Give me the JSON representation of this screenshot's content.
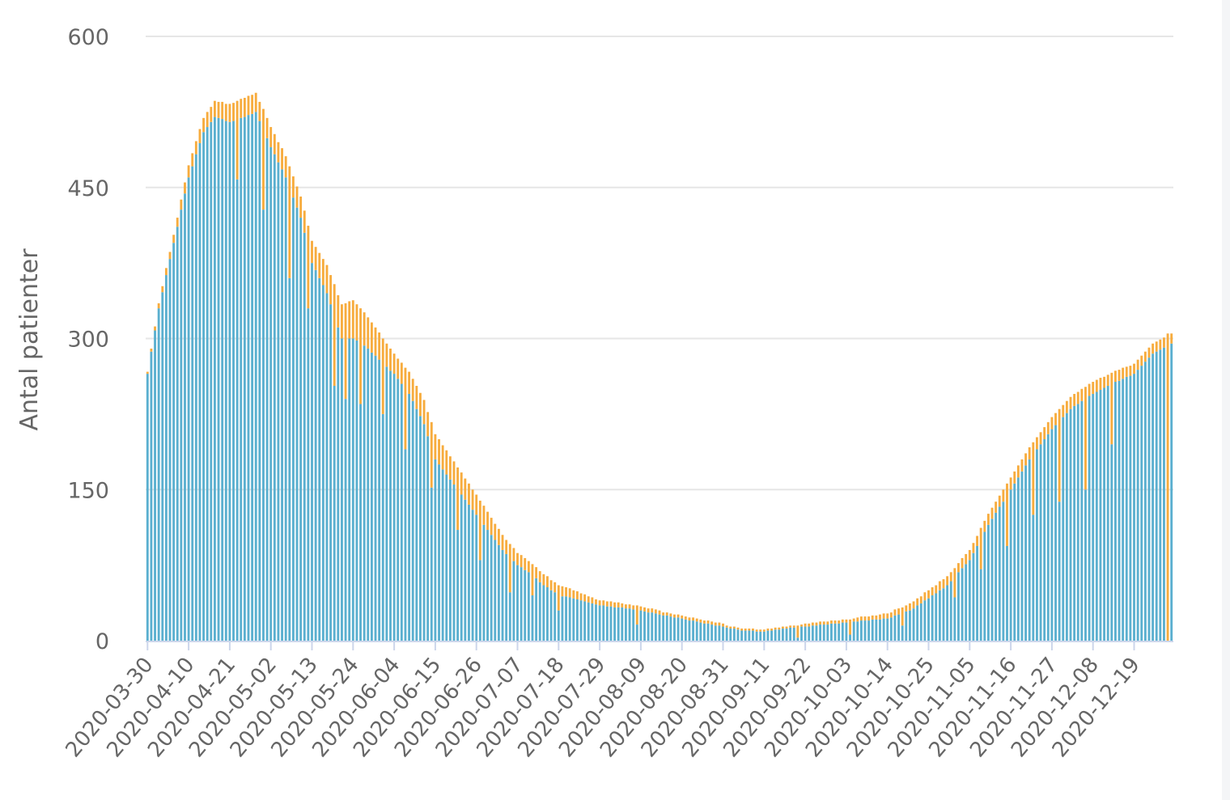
{
  "chart_data": {
    "type": "bar",
    "stacked": true,
    "ylabel": "Antal patienter",
    "ylim": [
      0,
      600
    ],
    "yticks": [
      0,
      150,
      300,
      450,
      600
    ],
    "grid": true,
    "legend": "none",
    "x_start": "2020-03-30",
    "x_end": "2020-12-29",
    "xtick_labels": [
      "2020-03-30",
      "2020-04-10",
      "2020-04-21",
      "2020-05-02",
      "2020-05-13",
      "2020-05-24",
      "2020-06-04",
      "2020-06-15",
      "2020-06-26",
      "2020-07-07",
      "2020-07-18",
      "2020-07-29",
      "2020-08-09",
      "2020-08-20",
      "2020-08-31",
      "2020-09-11",
      "2020-09-22",
      "2020-10-03",
      "2020-10-14",
      "2020-10-25",
      "2020-11-05",
      "2020-11-16",
      "2020-11-27",
      "2020-12-08",
      "2020-12-19"
    ],
    "series": [
      {
        "color": "#5aafcf",
        "knots": [
          [
            "2020-03-30",
            265
          ],
          [
            "2020-04-02",
            330
          ],
          [
            "2020-04-06",
            395
          ],
          [
            "2020-04-10",
            460
          ],
          [
            "2020-04-14",
            505
          ],
          [
            "2020-04-17",
            520
          ],
          [
            "2020-04-21",
            515
          ],
          [
            "2020-04-25",
            520
          ],
          [
            "2020-04-28",
            525
          ],
          [
            "2020-05-02",
            490
          ],
          [
            "2020-05-06",
            460
          ],
          [
            "2020-05-10",
            420
          ],
          [
            "2020-05-13",
            375
          ],
          [
            "2020-05-17",
            345
          ],
          [
            "2020-05-21",
            300
          ],
          [
            "2020-05-24",
            300
          ],
          [
            "2020-05-28",
            290
          ],
          [
            "2020-06-01",
            275
          ],
          [
            "2020-06-04",
            265
          ],
          [
            "2020-06-08",
            245
          ],
          [
            "2020-06-12",
            215
          ],
          [
            "2020-06-15",
            180
          ],
          [
            "2020-06-19",
            160
          ],
          [
            "2020-06-23",
            140
          ],
          [
            "2020-06-26",
            125
          ],
          [
            "2020-06-30",
            105
          ],
          [
            "2020-07-03",
            90
          ],
          [
            "2020-07-07",
            75
          ],
          [
            "2020-07-11",
            65
          ],
          [
            "2020-07-14",
            55
          ],
          [
            "2020-07-18",
            45
          ],
          [
            "2020-07-22",
            42
          ],
          [
            "2020-07-29",
            35
          ],
          [
            "2020-08-03",
            33
          ],
          [
            "2020-08-09",
            30
          ],
          [
            "2020-08-14",
            26
          ],
          [
            "2020-08-20",
            22
          ],
          [
            "2020-08-25",
            18
          ],
          [
            "2020-08-31",
            14
          ],
          [
            "2020-09-05",
            10
          ],
          [
            "2020-09-11",
            9
          ],
          [
            "2020-09-16",
            12
          ],
          [
            "2020-09-22",
            14
          ],
          [
            "2020-09-27",
            16
          ],
          [
            "2020-10-03",
            18
          ],
          [
            "2020-10-08",
            20
          ],
          [
            "2020-10-14",
            22
          ],
          [
            "2020-10-20",
            30
          ],
          [
            "2020-10-25",
            42
          ],
          [
            "2020-10-30",
            55
          ],
          [
            "2020-11-05",
            80
          ],
          [
            "2020-11-10",
            115
          ],
          [
            "2020-11-16",
            150
          ],
          [
            "2020-11-21",
            180
          ],
          [
            "2020-11-27",
            210
          ],
          [
            "2020-12-02",
            230
          ],
          [
            "2020-12-08",
            245
          ],
          [
            "2020-12-13",
            255
          ],
          [
            "2020-12-19",
            265
          ],
          [
            "2020-12-24",
            285
          ],
          [
            "2020-12-29",
            295
          ]
        ],
        "dips": [
          [
            "2020-04-23",
            60
          ],
          [
            "2020-04-30",
            80
          ],
          [
            "2020-05-07",
            90
          ],
          [
            "2020-05-12",
            60
          ],
          [
            "2020-05-19",
            70
          ],
          [
            "2020-05-22",
            60
          ],
          [
            "2020-05-26",
            60
          ],
          [
            "2020-06-01",
            50
          ],
          [
            "2020-06-07",
            60
          ],
          [
            "2020-06-14",
            40
          ],
          [
            "2020-06-21",
            40
          ],
          [
            "2020-06-27",
            40
          ],
          [
            "2020-07-05",
            35
          ],
          [
            "2020-07-11",
            20
          ],
          [
            "2020-07-18",
            15
          ],
          [
            "2020-08-08",
            15
          ],
          [
            "2020-09-20",
            10
          ],
          [
            "2020-10-04",
            12
          ],
          [
            "2020-10-18",
            12
          ],
          [
            "2020-11-01",
            20
          ],
          [
            "2020-11-08",
            30
          ],
          [
            "2020-11-15",
            50
          ],
          [
            "2020-11-22",
            60
          ],
          [
            "2020-11-29",
            80
          ],
          [
            "2020-12-06",
            90
          ],
          [
            "2020-12-13",
            60
          ],
          [
            "2020-12-28",
            295
          ]
        ]
      },
      {
        "color": "#f7ac3e",
        "knots": [
          [
            "2020-03-30",
            2
          ],
          [
            "2020-04-10",
            12
          ],
          [
            "2020-04-21",
            18
          ],
          [
            "2020-05-02",
            20
          ],
          [
            "2020-05-13",
            22
          ],
          [
            "2020-05-24",
            38
          ],
          [
            "2020-06-04",
            20
          ],
          [
            "2020-06-15",
            25
          ],
          [
            "2020-06-26",
            20
          ],
          [
            "2020-07-07",
            12
          ],
          [
            "2020-07-18",
            10
          ],
          [
            "2020-07-29",
            5
          ],
          [
            "2020-08-20",
            3
          ],
          [
            "2020-09-11",
            2
          ],
          [
            "2020-10-03",
            3
          ],
          [
            "2020-10-14",
            5
          ],
          [
            "2020-10-25",
            8
          ],
          [
            "2020-11-05",
            10
          ],
          [
            "2020-11-16",
            12
          ],
          [
            "2020-11-27",
            12
          ],
          [
            "2020-12-08",
            12
          ],
          [
            "2020-12-19",
            10
          ],
          [
            "2020-12-29",
            10
          ]
        ]
      }
    ]
  }
}
